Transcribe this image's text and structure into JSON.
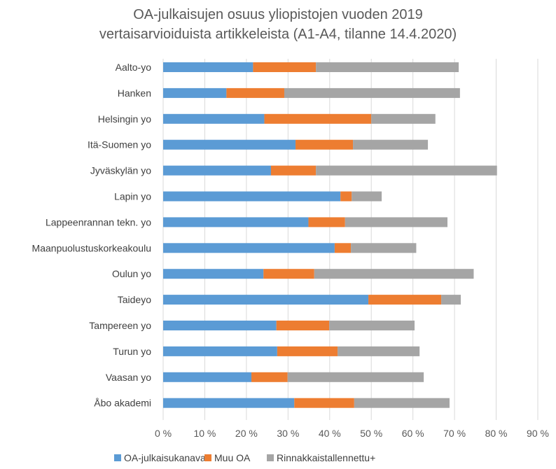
{
  "chart_data": {
    "type": "bar",
    "orientation": "horizontal",
    "stacked": true,
    "title": [
      "OA-julkaisujen osuus yliopistojen vuoden 2019",
      "vertaisarvioiduista artikkeleista (A1-A4, tilanne 14.4.2020)"
    ],
    "categories": [
      "Aalto-yo",
      "Hanken",
      "Helsingin yo",
      "Itä-Suomen yo",
      "Jyväskylän yo",
      "Lapin yo",
      "Lappeenrannan tekn. yo",
      "Maanpuolustuskorkeakoulu",
      "Oulun yo",
      "Taideyo",
      "Tampereen yo",
      "Turun yo",
      "Vaasan yo",
      "Åbo akademi"
    ],
    "series": [
      {
        "name": "OA-julkaisukanava",
        "color": "#5B9BD5",
        "values": [
          21.6,
          15.2,
          24.3,
          31.8,
          25.9,
          42.6,
          34.9,
          41.2,
          24.1,
          49.3,
          27.2,
          27.4,
          21.2,
          31.5
        ]
      },
      {
        "name": "Muu OA",
        "color": "#ED7D31",
        "values": [
          15.1,
          13.9,
          25.7,
          13.8,
          10.8,
          2.7,
          8.8,
          3.9,
          12.2,
          17.5,
          12.7,
          14.5,
          8.7,
          14.4
        ]
      },
      {
        "name": "Rinnakkaistallennettu+",
        "color": "#A5A5A5",
        "values": [
          34.3,
          42.2,
          15.4,
          18.0,
          43.5,
          7.2,
          24.6,
          15.7,
          38.3,
          4.7,
          20.5,
          19.7,
          32.7,
          22.9
        ]
      }
    ],
    "xlim": [
      0,
      90
    ],
    "xticks": [
      "0 %",
      "10 %",
      "20 %",
      "30 %",
      "40 %",
      "50 %",
      "60 %",
      "70 %",
      "80 %",
      "90 %"
    ],
    "xlabel": "",
    "ylabel": "",
    "grid": true,
    "legend": "bottom"
  }
}
